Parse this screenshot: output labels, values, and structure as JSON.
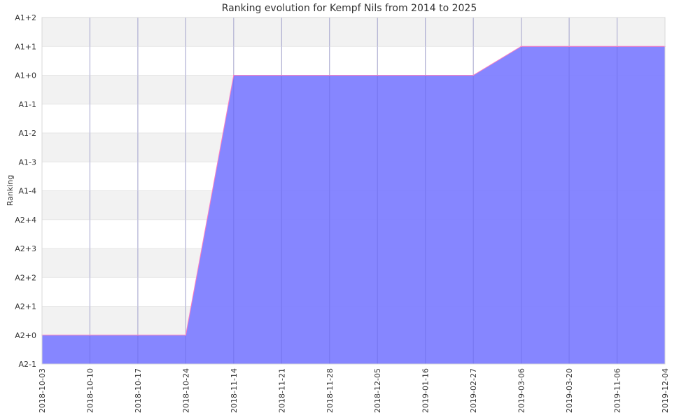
{
  "chart_data": {
    "type": "area",
    "title": "Ranking evolution for Kempf Nils from 2014 to 2025",
    "xlabel": "",
    "ylabel": "Ranking",
    "y_categories": [
      "A2-1",
      "A2+0",
      "A2+1",
      "A2+2",
      "A2+3",
      "A2+4",
      "A1-4",
      "A1-3",
      "A1-2",
      "A1-1",
      "A1+0",
      "A1+1",
      "A1+2"
    ],
    "x": [
      "2018-10-03",
      "2018-10-10",
      "2018-10-17",
      "2018-10-24",
      "2018-11-14",
      "2018-11-21",
      "2018-11-28",
      "2018-12-05",
      "2019-01-16",
      "2019-02-27",
      "2019-03-06",
      "2019-03-20",
      "2019-11-06",
      "2019-12-04"
    ],
    "series": [
      {
        "values": [
          "A2+0",
          "A2+0",
          "A2+0",
          "A2+0",
          "A1+0",
          "A1+0",
          "A1+0",
          "A1+0",
          "A1+0",
          "A1+0",
          "A1+1",
          "A1+1",
          "A1+1",
          "A1+1"
        ]
      }
    ],
    "grid": true,
    "colors": {
      "fill": "#7f7fff",
      "line": "#ff7fbf",
      "band": "#f2f2f2",
      "grid": "#cccccc"
    }
  }
}
